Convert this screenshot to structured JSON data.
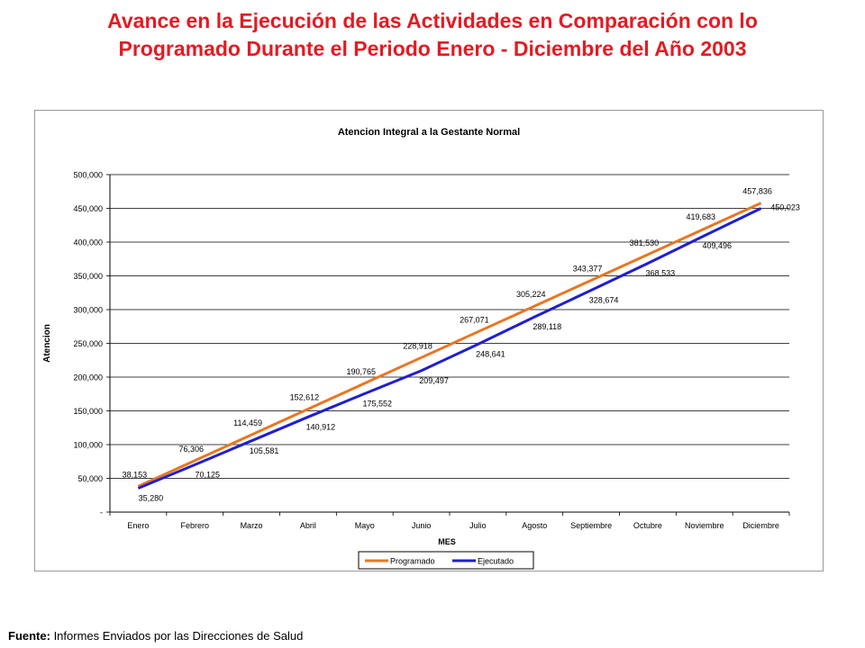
{
  "heading": {
    "line1": "Avance en la Ejecución de las Actividades en Comparación con lo",
    "line2": "Programado Durante el Periodo Enero - Diciembre del Año 2003"
  },
  "footer": {
    "label": "Fuente:",
    "text": " Informes Enviados por las Direcciones de Salud"
  },
  "chart_data": {
    "type": "line",
    "title": "Atencion Integral a la Gestante Normal",
    "xlabel": "MES",
    "ylabel": "Atencion",
    "ylim": [
      0,
      500000
    ],
    "grid": true,
    "legend_position": "bottom",
    "y_ticks": [
      0,
      50000,
      100000,
      150000,
      200000,
      250000,
      300000,
      350000,
      400000,
      450000,
      500000
    ],
    "y_tick_labels": [
      "-",
      "50,000",
      "100,000",
      "150,000",
      "200,000",
      "250,000",
      "300,000",
      "350,000",
      "400,000",
      "450,000",
      "500,000"
    ],
    "categories": [
      "Enero",
      "Febrero",
      "Marzo",
      "Abril",
      "Mayo",
      "Junio",
      "Julio",
      "Agosto",
      "Septiembre",
      "Octubre",
      "Noviembre",
      "Diciembre"
    ],
    "series": [
      {
        "name": "Programado",
        "color": "#e87722",
        "values": [
          38153,
          76306,
          114459,
          152612,
          190765,
          228918,
          267071,
          305224,
          343377,
          381530,
          419683,
          457836
        ],
        "labels": [
          "38,153",
          "76,306",
          "114,459",
          "152,612",
          "190,765",
          "228,918",
          "267,071",
          "305,224",
          "343,377",
          "381,530",
          "419,683",
          "457,836"
        ]
      },
      {
        "name": "Ejecutado",
        "color": "#1f1fd0",
        "values": [
          35280,
          70125,
          105581,
          140912,
          175552,
          209497,
          248641,
          289118,
          328674,
          368533,
          409496,
          450023
        ],
        "labels": [
          "35,280",
          "70,125",
          "105,581",
          "140,912",
          "175,552",
          "209,497",
          "248,641",
          "289,118",
          "328,674",
          "368,533",
          "409,496",
          "450,023"
        ]
      }
    ]
  }
}
